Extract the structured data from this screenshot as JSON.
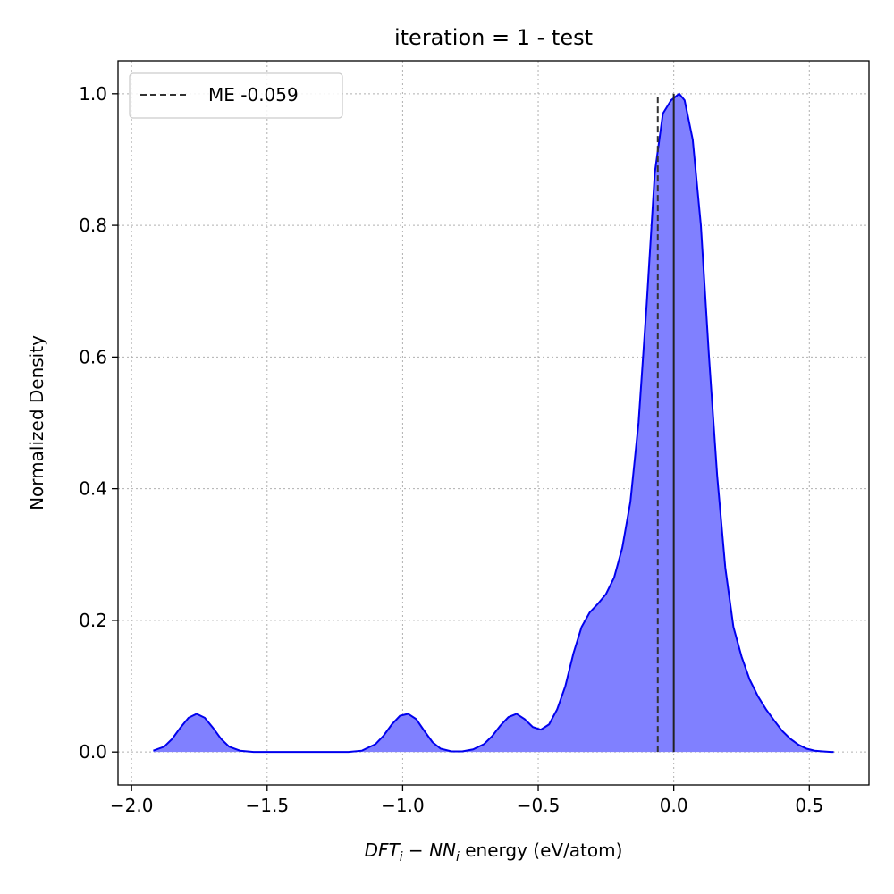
{
  "chart_data": {
    "type": "area",
    "title": "iteration = 1 - test",
    "xlabel_math": "DFT",
    "xlabel_sub1": "i",
    "xlabel_minus": " − ",
    "xlabel_math2": "NN",
    "xlabel_sub2": "i",
    "xlabel_rest": " energy (eV/atom)",
    "ylabel": "Normalized Density",
    "xlim": [
      -2.05,
      0.72
    ],
    "ylim": [
      -0.05,
      1.05
    ],
    "xticks": [
      -2.0,
      -1.5,
      -1.0,
      -0.5,
      0.0,
      0.5
    ],
    "xtick_labels": [
      "−2.0",
      "−1.5",
      "−1.0",
      "−0.5",
      "0.0",
      "0.5"
    ],
    "yticks": [
      0.0,
      0.2,
      0.4,
      0.6,
      0.8,
      1.0
    ],
    "ytick_labels": [
      "0.0",
      "0.2",
      "0.4",
      "0.6",
      "0.8",
      "1.0"
    ],
    "grid": true,
    "legend_position": "top-left",
    "legend": [
      {
        "label": "ME -0.059",
        "style": "dashed",
        "color": "#333333"
      }
    ],
    "fill_color": "#8080ff",
    "line_color": "#0000ee",
    "series": [
      {
        "x": [
          -1.92,
          -1.88,
          -1.85,
          -1.82,
          -1.79,
          -1.76,
          -1.73,
          -1.7,
          -1.67,
          -1.64,
          -1.6,
          -1.55,
          -1.5,
          -1.4,
          -1.3,
          -1.2,
          -1.15,
          -1.1,
          -1.07,
          -1.04,
          -1.01,
          -0.98,
          -0.95,
          -0.92,
          -0.89,
          -0.86,
          -0.82,
          -0.78,
          -0.74,
          -0.7,
          -0.67,
          -0.64,
          -0.61,
          -0.58,
          -0.55,
          -0.52,
          -0.49,
          -0.46,
          -0.43,
          -0.4,
          -0.37,
          -0.34,
          -0.31,
          -0.28,
          -0.25,
          -0.22,
          -0.19,
          -0.16,
          -0.13,
          -0.1,
          -0.07,
          -0.04,
          -0.01,
          0.02,
          0.04,
          0.07,
          0.1,
          0.13,
          0.16,
          0.19,
          0.22,
          0.25,
          0.28,
          0.31,
          0.34,
          0.37,
          0.4,
          0.43,
          0.46,
          0.49,
          0.52,
          0.55,
          0.58,
          0.59
        ],
        "y": [
          0.002,
          0.008,
          0.02,
          0.037,
          0.052,
          0.058,
          0.052,
          0.037,
          0.02,
          0.008,
          0.002,
          0.0,
          0.0,
          0.0,
          0.0,
          0.0,
          0.002,
          0.012,
          0.025,
          0.042,
          0.055,
          0.058,
          0.05,
          0.032,
          0.015,
          0.005,
          0.001,
          0.001,
          0.004,
          0.012,
          0.024,
          0.04,
          0.053,
          0.058,
          0.05,
          0.038,
          0.034,
          0.042,
          0.065,
          0.1,
          0.15,
          0.19,
          0.212,
          0.225,
          0.24,
          0.265,
          0.31,
          0.38,
          0.5,
          0.68,
          0.88,
          0.97,
          0.99,
          1.0,
          0.99,
          0.93,
          0.8,
          0.6,
          0.42,
          0.28,
          0.19,
          0.145,
          0.11,
          0.085,
          0.065,
          0.048,
          0.032,
          0.02,
          0.011,
          0.005,
          0.002,
          0.001,
          0.0,
          0.0
        ]
      }
    ],
    "vlines": [
      {
        "x": -0.059,
        "ymax": 0.995,
        "style": "dashed"
      },
      {
        "x": 0.0,
        "ymax": 1.0,
        "style": "solid"
      }
    ]
  }
}
